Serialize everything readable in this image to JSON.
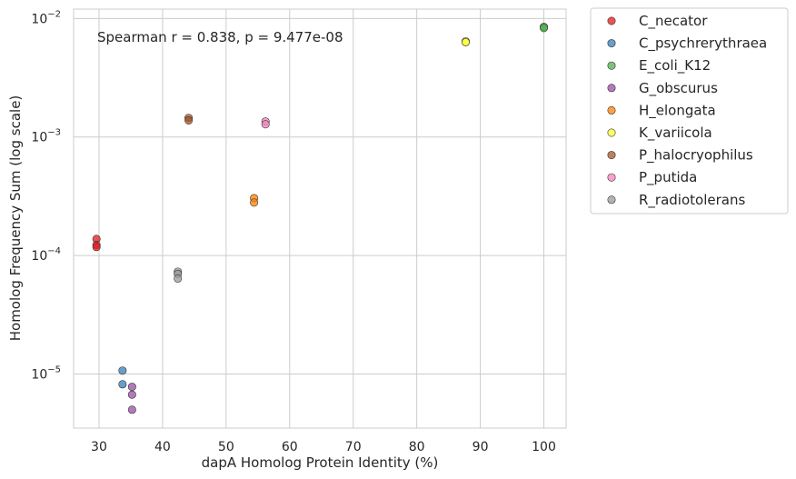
{
  "chart_data": {
    "type": "scatter",
    "xlabel": "dapA Homolog Protein Identity (%)",
    "ylabel": "Homolog Frequency Sum (log scale)",
    "annotation": "Spearman r = 0.838, p = 9.477e-08",
    "xlim": [
      26,
      103.5
    ],
    "ylim": [
      3.5e-06,
      0.012
    ],
    "yscale": "log",
    "grid": true,
    "legend_position": "outside-right",
    "x_ticks": [
      {
        "value": 30,
        "label": "30"
      },
      {
        "value": 40,
        "label": "40"
      },
      {
        "value": 50,
        "label": "50"
      },
      {
        "value": 60,
        "label": "60"
      },
      {
        "value": 70,
        "label": "70"
      },
      {
        "value": 80,
        "label": "80"
      },
      {
        "value": 90,
        "label": "90"
      },
      {
        "value": 100,
        "label": "100"
      }
    ],
    "y_ticks": [
      {
        "value": 1e-05,
        "base": "10",
        "exp": "−5"
      },
      {
        "value": 0.0001,
        "base": "10",
        "exp": "−4"
      },
      {
        "value": 0.001,
        "base": "10",
        "exp": "−3"
      },
      {
        "value": 0.01,
        "base": "10",
        "exp": "−2"
      }
    ],
    "series": [
      {
        "name": "C_necator",
        "color": "#e41a1c",
        "points": [
          [
            29.6,
            0.000138
          ],
          [
            29.6,
            0.000123
          ],
          [
            29.6,
            0.000118
          ]
        ]
      },
      {
        "name": "C_psychrerythraea",
        "color": "#377eb8",
        "points": [
          [
            33.7,
            1.07e-05
          ],
          [
            33.7,
            8.2e-06
          ]
        ]
      },
      {
        "name": "E_coli_K12",
        "color": "#4daf4a",
        "points": [
          [
            100,
            0.0085
          ],
          [
            100,
            0.0083
          ]
        ]
      },
      {
        "name": "G_obscurus",
        "color": "#984ea3",
        "points": [
          [
            35.2,
            7.8e-06
          ],
          [
            35.2,
            6.7e-06
          ],
          [
            35.2,
            5e-06
          ]
        ]
      },
      {
        "name": "H_elongata",
        "color": "#ff7f00",
        "points": [
          [
            54.4,
            0.000305
          ],
          [
            54.4,
            0.00028
          ]
        ]
      },
      {
        "name": "K_variicola",
        "color": "#ffff33",
        "points": [
          [
            87.7,
            0.0064
          ],
          [
            87.7,
            0.0063
          ]
        ]
      },
      {
        "name": "P_halocryophilus",
        "color": "#a65628",
        "points": [
          [
            44.1,
            0.00145
          ],
          [
            44.1,
            0.00138
          ]
        ]
      },
      {
        "name": "P_putida",
        "color": "#f781bf",
        "points": [
          [
            56.2,
            0.00135
          ],
          [
            56.2,
            0.00128
          ]
        ]
      },
      {
        "name": "R_radiotolerans",
        "color": "#999999",
        "points": [
          [
            42.4,
            7.3e-05
          ],
          [
            42.4,
            7e-05
          ],
          [
            42.4,
            6.4e-05
          ]
        ]
      }
    ]
  }
}
